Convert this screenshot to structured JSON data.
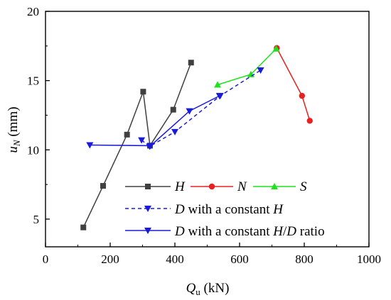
{
  "chart_data": {
    "type": "line",
    "xlabel": {
      "main": "Q",
      "sub": "u",
      "unit": " (kN)"
    },
    "ylabel": {
      "main": "u",
      "sub": "N",
      "unit": " (mm)"
    },
    "xlim": [
      0,
      1000
    ],
    "ylim": [
      3,
      20
    ],
    "xticks": [
      0,
      200,
      400,
      600,
      800,
      1000
    ],
    "yticks": [
      5,
      10,
      15,
      20
    ],
    "grid": false,
    "legend_position": "bottom-right",
    "series": [
      {
        "id": "H",
        "name": "H",
        "color": "#404040",
        "marker": "square",
        "dash": false,
        "x": [
          117,
          178,
          252,
          302,
          323,
          395,
          450
        ],
        "y": [
          4.4,
          7.4,
          11.1,
          14.2,
          10.3,
          12.9,
          16.3
        ]
      },
      {
        "id": "N",
        "name": "N",
        "color": "#e8201f",
        "marker": "circle",
        "dash": false,
        "x": [
          715,
          793,
          817
        ],
        "y": [
          17.35,
          13.9,
          12.1
        ]
      },
      {
        "id": "S",
        "name": "S",
        "color": "#1fe21f",
        "marker": "triangle-up",
        "dash": false,
        "x": [
          532,
          635,
          713
        ],
        "y": [
          14.7,
          15.45,
          17.3
        ]
      },
      {
        "id": "D_const_H",
        "name": "D with a constant H",
        "color": "#1a1adb",
        "marker": "triangle-down",
        "dash": true,
        "x": [
          297,
          322,
          400,
          540,
          665
        ],
        "y": [
          10.7,
          10.25,
          11.3,
          13.9,
          15.75
        ]
      },
      {
        "id": "D_const_HD",
        "name": "D with a constant H/D ratio",
        "color": "#1a1adb",
        "marker": "triangle-down",
        "dash": false,
        "x": [
          137,
          325,
          445,
          538
        ],
        "y": [
          10.35,
          10.3,
          12.8,
          13.9
        ]
      }
    ],
    "legend": {
      "row1": [
        "H",
        "N",
        "S"
      ],
      "row2": {
        "D": "D",
        "mid": " with a constant ",
        "H": "H"
      },
      "row3": {
        "D": "D",
        "mid": " with a constant ",
        "H": "H",
        "slash": "/",
        "D2": "D",
        "tail": " ratio"
      }
    }
  }
}
